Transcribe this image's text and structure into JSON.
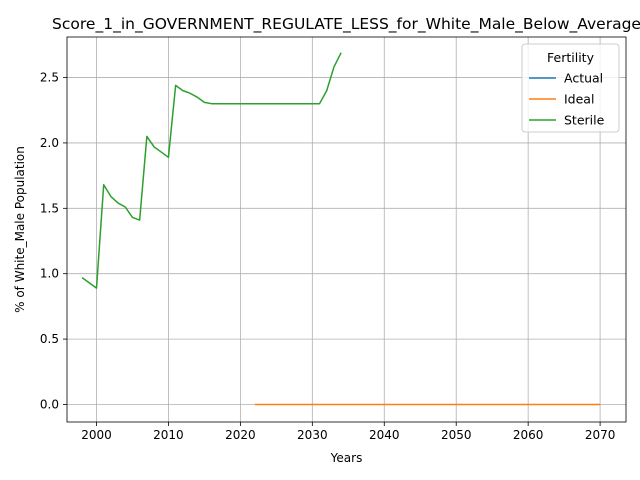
{
  "chart_data": {
    "type": "line",
    "title": "Score_1_in_GOVERNMENT_REGULATE_LESS_for_White_Male_Below_Average",
    "xlabel": "Years",
    "ylabel": "% of White_Male Population",
    "xlim": [
      1995.9,
      2073.6
    ],
    "ylim": [
      -0.134,
      2.81
    ],
    "x_ticks": [
      2000,
      2010,
      2020,
      2030,
      2040,
      2050,
      2060,
      2070
    ],
    "y_ticks": [
      0.0,
      0.5,
      1.0,
      1.5,
      2.0,
      2.5
    ],
    "x_tick_labels": [
      "2000",
      "2010",
      "2020",
      "2030",
      "2040",
      "2050",
      "2060",
      "2070"
    ],
    "y_tick_labels": [
      "0.0",
      "0.5",
      "1.0",
      "1.5",
      "2.0",
      "2.5"
    ],
    "grid": true,
    "legend": {
      "title": "Fertility",
      "placement": "upper right"
    },
    "series": [
      {
        "name": "Actual",
        "color": "#1f77b4",
        "x": [],
        "y": []
      },
      {
        "name": "Ideal",
        "color": "#ff7f0e",
        "x": [
          2022,
          2030,
          2040,
          2050,
          2060,
          2070
        ],
        "y": [
          0.0,
          0.0,
          0.0,
          0.0,
          0.0,
          0.0
        ]
      },
      {
        "name": "Sterile",
        "color": "#2ca02c",
        "x": [
          1998,
          1999,
          2000,
          2001,
          2002,
          2003,
          2004,
          2005,
          2006,
          2007,
          2008,
          2009,
          2010,
          2011,
          2012,
          2013,
          2014,
          2015,
          2016,
          2017,
          2018,
          2019,
          2020,
          2021,
          2022,
          2023,
          2024,
          2025,
          2026,
          2027,
          2028,
          2029,
          2030,
          2031,
          2032,
          2033,
          2034
        ],
        "y": [
          0.97,
          0.93,
          0.89,
          1.68,
          1.59,
          1.54,
          1.51,
          1.43,
          1.41,
          2.05,
          1.97,
          1.93,
          1.89,
          2.44,
          2.4,
          2.38,
          2.35,
          2.31,
          2.3,
          2.3,
          2.3,
          2.3,
          2.3,
          2.3,
          2.3,
          2.3,
          2.3,
          2.3,
          2.3,
          2.3,
          2.3,
          2.3,
          2.3,
          2.3,
          2.4,
          2.58,
          2.69
        ]
      }
    ]
  }
}
